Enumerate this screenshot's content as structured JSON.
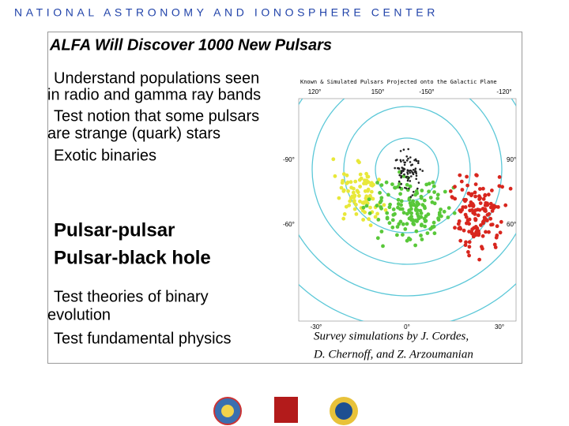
{
  "header": {
    "organization": "NATIONAL ASTRONOMY AND IONOSPHERE CENTER"
  },
  "slide": {
    "title": "ALFA Will Discover 1000 New Pulsars",
    "bullets_top": [
      [
        "Understand populations seen",
        "in radio and gamma ray bands"
      ],
      [
        "Test notion that some pulsars",
        "are strange (quark) stars"
      ],
      [
        "Exotic binaries"
      ]
    ],
    "binaries": [
      "Pulsar-pulsar",
      "Pulsar-black hole"
    ],
    "bullets_bottom": [
      [
        "Test theories of binary",
        "evolution"
      ],
      [
        "Test fundamental physics"
      ]
    ],
    "figure": {
      "title": "Known & Simulated Pulsars Projected onto the Galactic Plane",
      "top_labels": [
        "120°",
        "150°",
        "-150°",
        "-120°"
      ],
      "left_labels": [
        "-90°",
        "-60°"
      ],
      "right_labels": [
        "90°",
        "60°"
      ],
      "bottom_labels": [
        "-30°",
        "0°",
        "30°"
      ]
    },
    "caption": [
      "Survey simulations by J. Cordes,",
      "D. Chernoff, and Z. Arzoumanian"
    ]
  }
}
